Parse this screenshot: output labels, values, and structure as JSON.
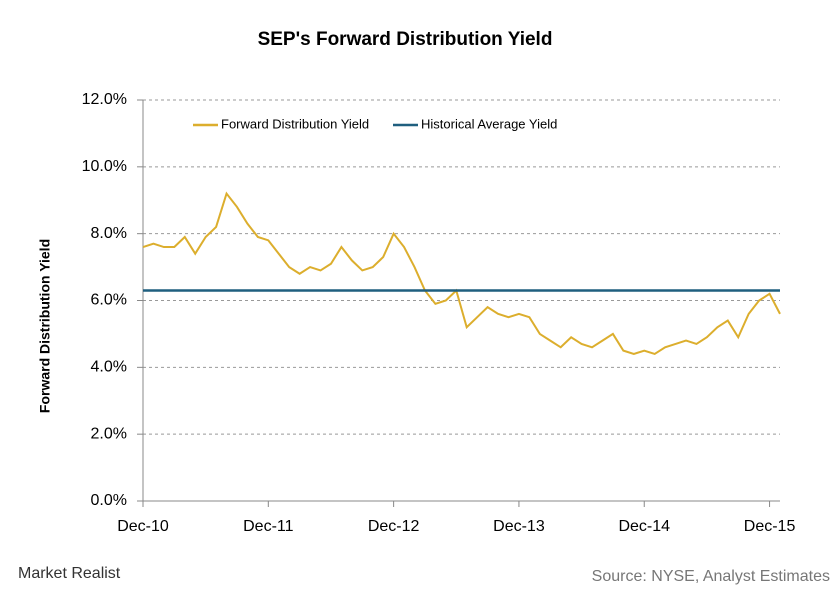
{
  "chart_data": {
    "type": "line",
    "title": "SEP's Forward Distribution  Yield",
    "y_label": "Forward Distribution Yield",
    "categories": [
      "Dec-10",
      null,
      null,
      null,
      null,
      null,
      null,
      null,
      null,
      null,
      null,
      null,
      "Dec-11",
      null,
      null,
      null,
      null,
      null,
      null,
      null,
      null,
      null,
      null,
      null,
      "Dec-12",
      null,
      null,
      null,
      null,
      null,
      null,
      null,
      null,
      null,
      null,
      null,
      "Dec-13",
      null,
      null,
      null,
      null,
      null,
      null,
      null,
      null,
      null,
      null,
      null,
      "Dec-14",
      null,
      null,
      null,
      null,
      null,
      null,
      null,
      null,
      null,
      null,
      null,
      "Dec-15",
      null
    ],
    "series": [
      {
        "name": "Forward Distribution Yield",
        "color": "#dcae2d",
        "values": [
          7.6,
          7.7,
          7.6,
          7.6,
          7.9,
          7.4,
          7.9,
          8.2,
          9.2,
          8.8,
          8.3,
          7.9,
          7.8,
          7.4,
          7.0,
          6.8,
          7.0,
          6.9,
          7.1,
          7.6,
          7.2,
          6.9,
          7.0,
          7.3,
          8.0,
          7.6,
          7.0,
          6.3,
          5.9,
          6.0,
          6.3,
          5.2,
          5.5,
          5.8,
          5.6,
          5.5,
          5.6,
          5.5,
          5.0,
          4.8,
          4.6,
          4.9,
          4.7,
          4.6,
          4.8,
          5.0,
          4.5,
          4.4,
          4.5,
          4.4,
          4.6,
          4.7,
          4.8,
          4.7,
          4.9,
          5.2,
          5.4,
          4.9,
          5.6,
          6.0,
          6.2,
          5.6
        ]
      },
      {
        "name": "Historical Average Yield",
        "color": "#1f5f7f",
        "values": [
          6.3,
          6.3,
          6.3,
          6.3,
          6.3,
          6.3,
          6.3,
          6.3,
          6.3,
          6.3,
          6.3,
          6.3,
          6.3,
          6.3,
          6.3,
          6.3,
          6.3,
          6.3,
          6.3,
          6.3,
          6.3,
          6.3,
          6.3,
          6.3,
          6.3,
          6.3,
          6.3,
          6.3,
          6.3,
          6.3,
          6.3,
          6.3,
          6.3,
          6.3,
          6.3,
          6.3,
          6.3,
          6.3,
          6.3,
          6.3,
          6.3,
          6.3,
          6.3,
          6.3,
          6.3,
          6.3,
          6.3,
          6.3,
          6.3,
          6.3,
          6.3,
          6.3,
          6.3,
          6.3,
          6.3,
          6.3,
          6.3,
          6.3,
          6.3,
          6.3,
          6.3,
          6.3
        ]
      }
    ],
    "ylim": [
      0,
      12
    ],
    "yticks": [
      {
        "value": 0,
        "label": "0.0%"
      },
      {
        "value": 2,
        "label": "2.0%"
      },
      {
        "value": 4,
        "label": "4.0%"
      },
      {
        "value": 6,
        "label": "6.0%"
      },
      {
        "value": 8,
        "label": "8.0%"
      },
      {
        "value": 10,
        "label": "10.0%"
      },
      {
        "value": 12,
        "label": "12.0%"
      }
    ],
    "grid": true
  },
  "brand": "Market Realist",
  "source": "Source: NYSE, Analyst Estimates"
}
